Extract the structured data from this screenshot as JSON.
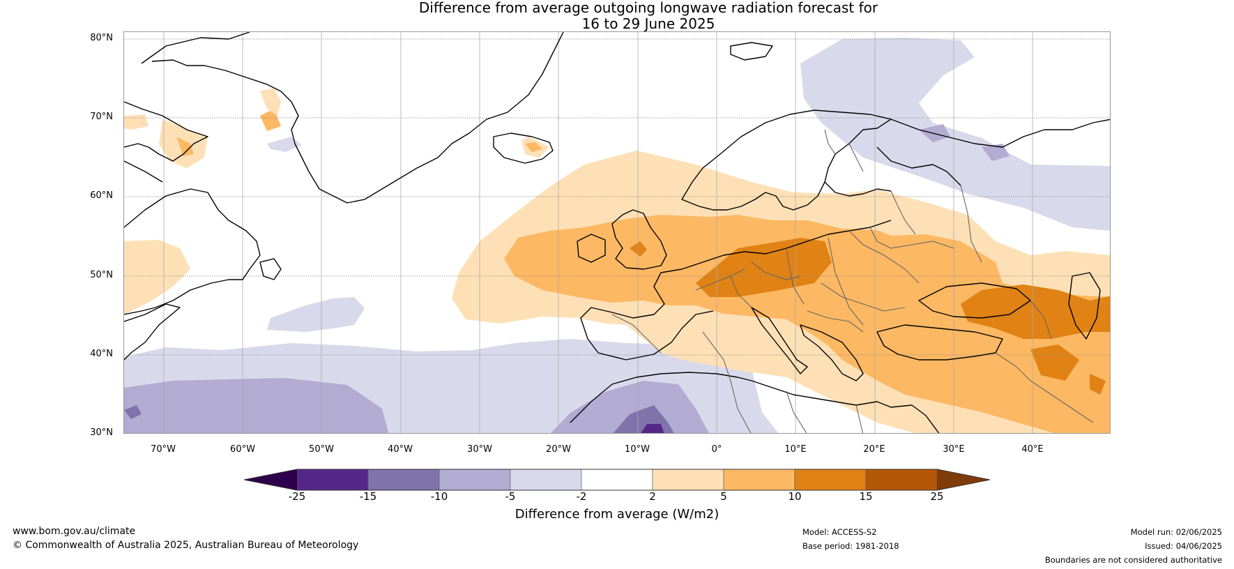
{
  "title": {
    "line1": "Difference from average outgoing longwave radiation forecast for",
    "line2": "16 to 29 June 2025"
  },
  "map": {
    "lat_labels": [
      "80°N",
      "70°N",
      "60°N",
      "50°N",
      "40°N",
      "30°N"
    ],
    "lon_labels": [
      "70°W",
      "60°W",
      "50°W",
      "40°W",
      "30°W",
      "20°W",
      "10°W",
      "0°",
      "10°E",
      "20°E",
      "30°E",
      "40°E"
    ],
    "colors": {
      "neg_extreme": "#2d004b",
      "neg_25_15": "#542788",
      "neg_15_10": "#8073ac",
      "neg_10_5": "#b2abd2",
      "neg_5_2": "#d8daeb",
      "neutral": "#ffffff",
      "pos_2_5": "#fee0b6",
      "pos_5_10": "#fdb863",
      "pos_10_15": "#e08214",
      "pos_15_25": "#b35806",
      "pos_extreme": "#7f3b08"
    }
  },
  "colorbar": {
    "ticks": [
      "-25",
      "-15",
      "-10",
      "-5",
      "-2",
      "2",
      "5",
      "10",
      "15",
      "25"
    ],
    "colors": [
      "#542788",
      "#8073ac",
      "#b2abd2",
      "#d8daeb",
      "#ffffff",
      "#fee0b6",
      "#fdb863",
      "#e08214",
      "#b35806"
    ],
    "extend_low": "#2d004b",
    "extend_high": "#7f3b08",
    "label": "Difference from average (W/m2)"
  },
  "footer": {
    "website": "www.bom.gov.au/climate",
    "copyright": "© Commonwealth of Australia 2025, Australian Bureau of Meteorology",
    "model": "Model: ACCESS-S2",
    "base_period": "Base period: 1981-2018",
    "model_run": "Model run: 02/06/2025",
    "issued": "Issued: 04/06/2025",
    "disclaimer": "Boundaries are not considered authoritative"
  }
}
